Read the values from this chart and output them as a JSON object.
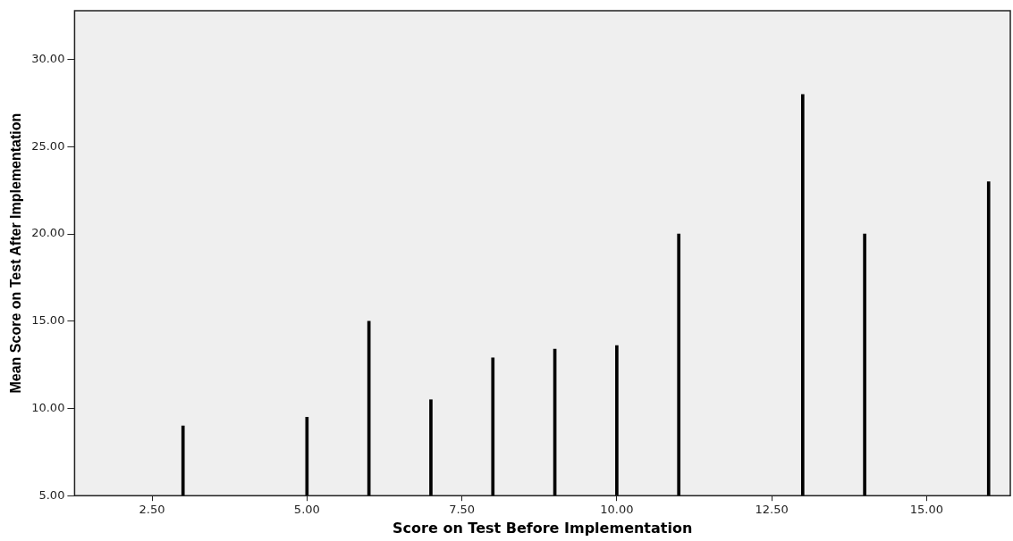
{
  "chart_data": {
    "type": "bar",
    "xlabel": "Score on Test Before Implementation",
    "ylabel": "Mean Score on Test After Implementation",
    "x": [
      3,
      5,
      6,
      7,
      8,
      9,
      10,
      11,
      13,
      14,
      16
    ],
    "values": [
      9,
      9.5,
      15,
      10.5,
      12.9,
      13.4,
      13.6,
      20,
      28,
      20,
      23
    ],
    "color": "#000000",
    "xlim": [
      1.25,
      16.35
    ],
    "xticks": [
      {
        "value": 2.5,
        "label": "2.50"
      },
      {
        "value": 5,
        "label": "5.00"
      },
      {
        "value": 7.5,
        "label": "7.50"
      },
      {
        "value": 10,
        "label": "10.00"
      },
      {
        "value": 12.5,
        "label": "12.50"
      },
      {
        "value": 15,
        "label": "15.00"
      }
    ],
    "ylim": [
      5,
      32.8
    ],
    "yticks": [
      {
        "value": 5,
        "label": "5.00"
      },
      {
        "value": 10,
        "label": "10.00"
      },
      {
        "value": 15,
        "label": "15.00"
      },
      {
        "value": 20,
        "label": "20.00"
      },
      {
        "value": 25,
        "label": "25.00"
      },
      {
        "value": 30,
        "label": "30.00"
      }
    ],
    "grid": false,
    "legend": false
  }
}
